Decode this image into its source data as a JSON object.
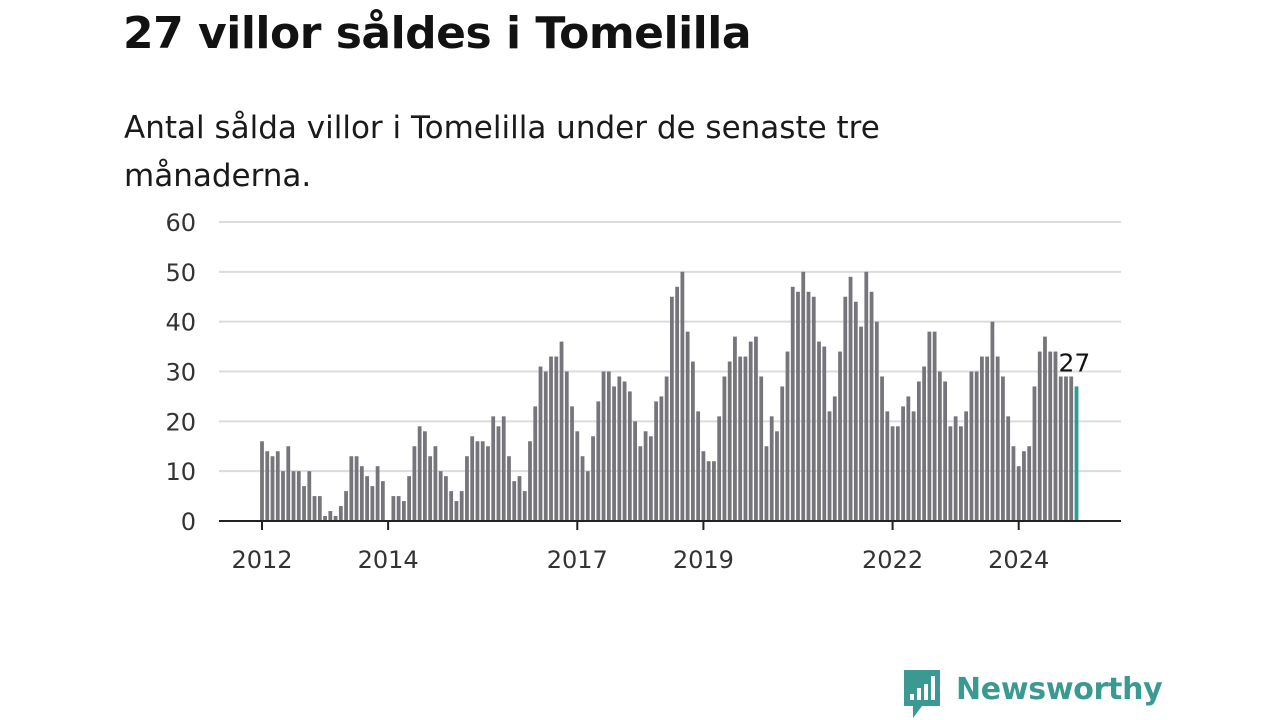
{
  "header": {
    "title": "27 villor såldes i Tomelilla",
    "subtitle": "Antal sålda villor i Tomelilla under de senaste tre månaderna."
  },
  "brand": {
    "name": "Newsworthy",
    "logo_icon": "bar-chart-speech-bubble-icon",
    "color": "#3a9a92"
  },
  "chart_data": {
    "type": "bar",
    "title": "27 villor såldes i Tomelilla",
    "subtitle": "Antal sålda villor i Tomelilla under de senaste tre månaderna.",
    "xlabel": "",
    "ylabel": "",
    "ylim": [
      0,
      60
    ],
    "yticks": [
      0,
      10,
      20,
      30,
      40,
      50,
      60
    ],
    "xticks": [
      {
        "label": "2012",
        "index": 0
      },
      {
        "label": "2014",
        "index": 24
      },
      {
        "label": "2017",
        "index": 60
      },
      {
        "label": "2019",
        "index": 84
      },
      {
        "label": "2022",
        "index": 120
      },
      {
        "label": "2024",
        "index": 144
      }
    ],
    "grid": true,
    "bar_color": "#75757b",
    "highlight_color": "#2a9d8f",
    "highlight_label": "27",
    "series": [
      {
        "values": [
          16,
          14,
          13,
          14,
          10,
          15,
          10,
          10,
          7,
          10,
          5,
          5,
          1,
          2,
          1,
          3,
          6,
          13,
          13,
          11,
          9,
          7,
          11,
          8,
          0,
          5,
          5,
          4,
          9,
          15,
          19,
          18,
          13,
          15,
          10,
          9,
          6,
          4,
          6,
          13,
          17,
          16,
          16,
          15,
          21,
          19,
          21,
          13,
          8,
          9,
          6,
          16,
          23,
          31,
          30,
          33,
          33,
          36,
          30,
          23,
          18,
          13,
          10,
          17,
          24,
          30,
          30,
          27,
          29,
          28,
          26,
          20,
          15,
          18,
          17,
          24,
          25,
          29,
          45,
          47,
          50,
          38,
          32,
          22,
          14,
          12,
          12,
          21,
          29,
          32,
          37,
          33,
          33,
          36,
          37,
          29,
          15,
          21,
          18,
          27,
          34,
          47,
          46,
          50,
          46,
          45,
          36,
          35,
          22,
          25,
          34,
          45,
          49,
          44,
          39,
          50,
          46,
          40,
          29,
          22,
          19,
          19,
          23,
          25,
          22,
          28,
          31,
          38,
          38,
          30,
          28,
          19,
          21,
          19,
          22,
          30,
          30,
          33,
          33,
          40,
          33,
          29,
          21,
          15,
          11,
          14,
          15,
          27,
          34,
          37,
          34,
          34,
          29,
          29,
          29,
          27
        ]
      }
    ]
  }
}
